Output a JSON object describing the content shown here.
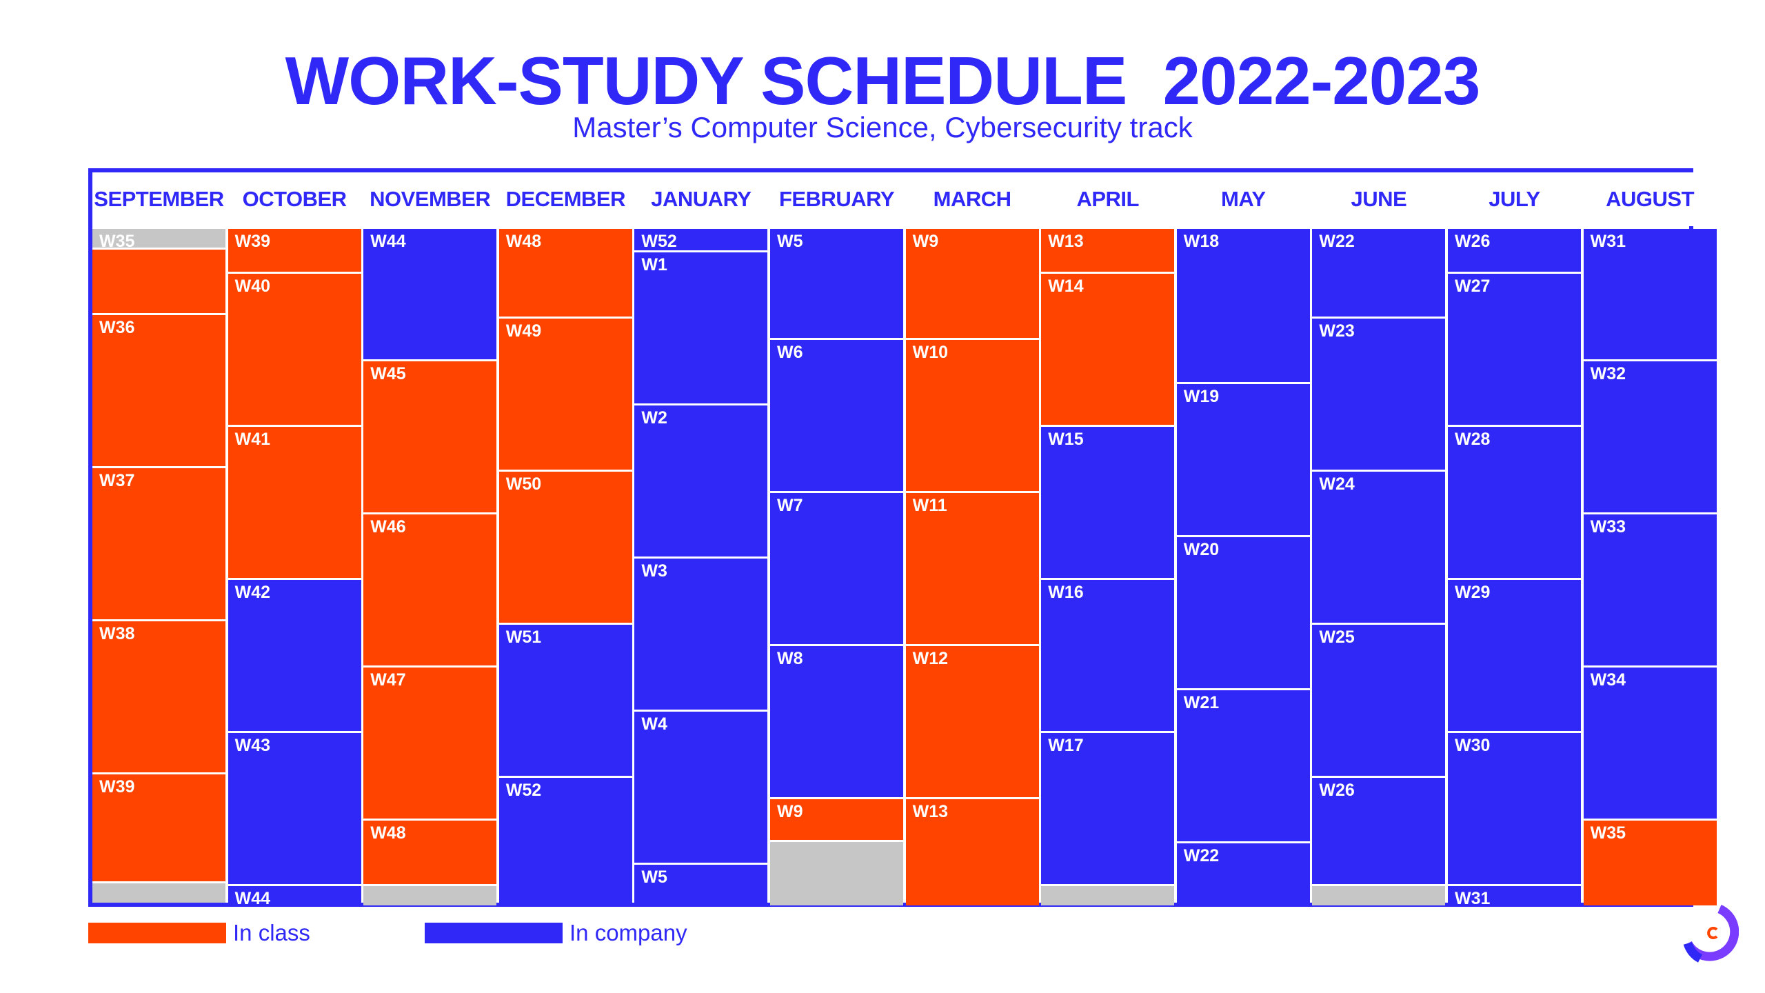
{
  "header": {
    "title": "WORK-STUDY SCHEDULE  2022-2023",
    "subtitle": "Master’s Computer Science, Cybersecurity track"
  },
  "colors": {
    "class": "#ff4400",
    "company": "#2f28f6",
    "gap": "#c6c6c6",
    "border": "#2f28f6"
  },
  "legend": {
    "class_label": "In class",
    "company_label": "In company"
  },
  "months": [
    {
      "name": "SEPTEMBER",
      "cells": [
        {
          "label": "W35",
          "type": "gap",
          "weeks": 0.12
        },
        {
          "label": "",
          "type": "class",
          "weeks": 0.43
        },
        {
          "label": "W36",
          "type": "class",
          "weeks": 1
        },
        {
          "label": "W37",
          "type": "class",
          "weeks": 1
        },
        {
          "label": "W38",
          "type": "class",
          "weeks": 1
        },
        {
          "label": "W39",
          "type": "class",
          "weeks": 0.71
        },
        {
          "label": "",
          "type": "gap",
          "weeks": 0.14
        }
      ]
    },
    {
      "name": "OCTOBER",
      "cells": [
        {
          "label": "W39",
          "type": "class",
          "weeks": 0.28
        },
        {
          "label": "W40",
          "type": "class",
          "weeks": 1
        },
        {
          "label": "W41",
          "type": "class",
          "weeks": 1
        },
        {
          "label": "W42",
          "type": "company",
          "weeks": 1
        },
        {
          "label": "W43",
          "type": "company",
          "weeks": 1
        },
        {
          "label": "W44",
          "type": "company",
          "weeks": 0.14
        }
      ]
    },
    {
      "name": "NOVEMBER",
      "cells": [
        {
          "label": "W44",
          "type": "company",
          "weeks": 0.85
        },
        {
          "label": "W45",
          "type": "class",
          "weeks": 1
        },
        {
          "label": "W46",
          "type": "class",
          "weeks": 1
        },
        {
          "label": "W47",
          "type": "class",
          "weeks": 1
        },
        {
          "label": "W48",
          "type": "class",
          "weeks": 0.43
        },
        {
          "label": "",
          "type": "gap",
          "weeks": 0.14
        }
      ]
    },
    {
      "name": "DECEMBER",
      "cells": [
        {
          "label": "W48",
          "type": "class",
          "weeks": 0.57
        },
        {
          "label": "W49",
          "type": "class",
          "weeks": 1
        },
        {
          "label": "W50",
          "type": "class",
          "weeks": 1
        },
        {
          "label": "W51",
          "type": "company",
          "weeks": 1
        },
        {
          "label": "W52",
          "type": "company",
          "weeks": 0.85
        }
      ]
    },
    {
      "name": "JANUARY",
      "cells": [
        {
          "label": "W52",
          "type": "company",
          "weeks": 0.14
        },
        {
          "label": "W1",
          "type": "company",
          "weeks": 1
        },
        {
          "label": "W2",
          "type": "company",
          "weeks": 1
        },
        {
          "label": "W3",
          "type": "company",
          "weeks": 1
        },
        {
          "label": "W4",
          "type": "company",
          "weeks": 1
        },
        {
          "label": "W5",
          "type": "company",
          "weeks": 0.28
        }
      ]
    },
    {
      "name": "FEBRUARY",
      "cells": [
        {
          "label": "W5",
          "type": "company",
          "weeks": 0.71
        },
        {
          "label": "W6",
          "type": "company",
          "weeks": 1
        },
        {
          "label": "W7",
          "type": "company",
          "weeks": 1
        },
        {
          "label": "W8",
          "type": "company",
          "weeks": 1
        },
        {
          "label": "W9",
          "type": "class",
          "weeks": 0.28
        },
        {
          "label": "",
          "type": "gap",
          "weeks": 0.43
        }
      ]
    },
    {
      "name": "MARCH",
      "cells": [
        {
          "label": "W9",
          "type": "class",
          "weeks": 0.71
        },
        {
          "label": "W10",
          "type": "class",
          "weeks": 1
        },
        {
          "label": "W11",
          "type": "class",
          "weeks": 1
        },
        {
          "label": "W12",
          "type": "class",
          "weeks": 1
        },
        {
          "label": "W13",
          "type": "class",
          "weeks": 0.71
        }
      ]
    },
    {
      "name": "APRIL",
      "cells": [
        {
          "label": "W13",
          "type": "class",
          "weeks": 0.28
        },
        {
          "label": "W14",
          "type": "class",
          "weeks": 1
        },
        {
          "label": "W15",
          "type": "company",
          "weeks": 1
        },
        {
          "label": "W16",
          "type": "company",
          "weeks": 1
        },
        {
          "label": "W17",
          "type": "company",
          "weeks": 1
        },
        {
          "label": "",
          "type": "gap",
          "weeks": 0.14
        }
      ]
    },
    {
      "name": "MAY",
      "cells": [
        {
          "label": "W18",
          "type": "company",
          "weeks": 1
        },
        {
          "label": "W19",
          "type": "company",
          "weeks": 1
        },
        {
          "label": "W20",
          "type": "company",
          "weeks": 1
        },
        {
          "label": "W21",
          "type": "company",
          "weeks": 1
        },
        {
          "label": "W22",
          "type": "company",
          "weeks": 0.43
        }
      ]
    },
    {
      "name": "JUNE",
      "cells": [
        {
          "label": "W22",
          "type": "company",
          "weeks": 0.57
        },
        {
          "label": "W23",
          "type": "company",
          "weeks": 1
        },
        {
          "label": "W24",
          "type": "company",
          "weeks": 1
        },
        {
          "label": "W25",
          "type": "company",
          "weeks": 1
        },
        {
          "label": "W26",
          "type": "company",
          "weeks": 0.71
        },
        {
          "label": "",
          "type": "gap",
          "weeks": 0.14
        }
      ]
    },
    {
      "name": "JULY",
      "cells": [
        {
          "label": "W26",
          "type": "company",
          "weeks": 0.28
        },
        {
          "label": "W27",
          "type": "company",
          "weeks": 1
        },
        {
          "label": "W28",
          "type": "company",
          "weeks": 1
        },
        {
          "label": "W29",
          "type": "company",
          "weeks": 1
        },
        {
          "label": "W30",
          "type": "company",
          "weeks": 1
        },
        {
          "label": "W31",
          "type": "company",
          "weeks": 0.14
        }
      ]
    },
    {
      "name": "AUGUST",
      "cells": [
        {
          "label": "W31",
          "type": "company",
          "weeks": 0.85
        },
        {
          "label": "W32",
          "type": "company",
          "weeks": 1
        },
        {
          "label": "W33",
          "type": "company",
          "weeks": 1
        },
        {
          "label": "W34",
          "type": "company",
          "weeks": 1
        },
        {
          "label": "W35",
          "type": "class",
          "weeks": 0.57
        }
      ]
    }
  ]
}
